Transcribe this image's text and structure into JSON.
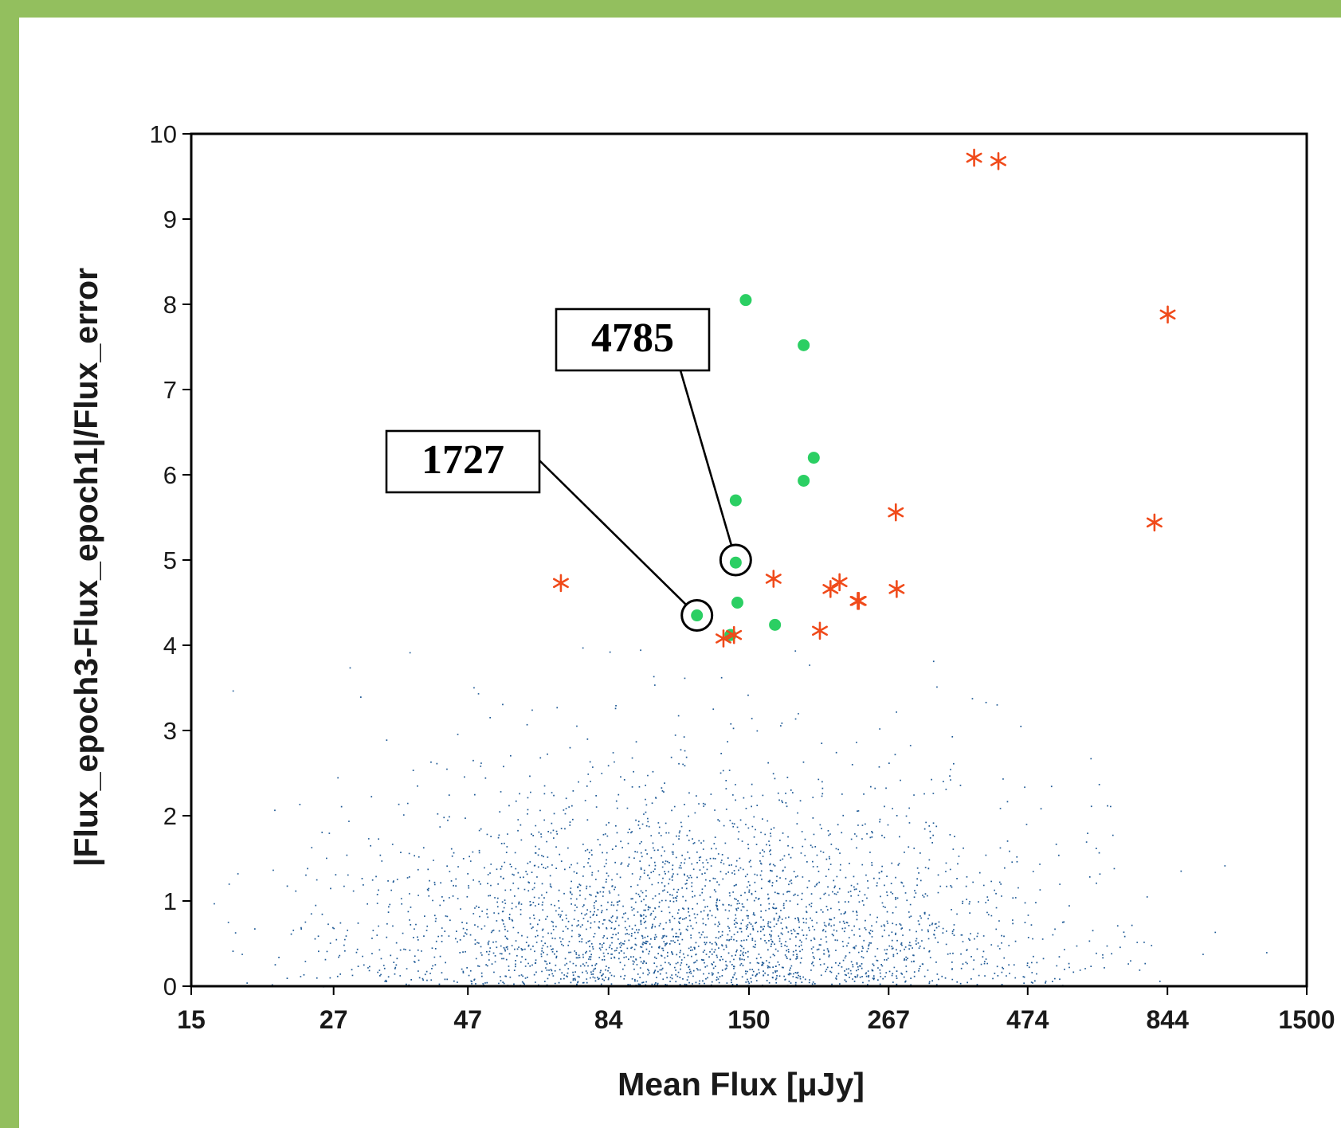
{
  "chart_data": {
    "type": "scatter",
    "title": "",
    "xlabel": "Mean Flux [μJy]",
    "ylabel": "|Flux_epoch3-Flux_epoch1|/Flux_error",
    "x_scale": "log",
    "xlim": [
      15,
      1500
    ],
    "ylim": [
      0,
      10
    ],
    "x_ticks": [
      "15",
      "27",
      "47",
      "84",
      "150",
      "267",
      "474",
      "844",
      "1500"
    ],
    "y_ticks": [
      "0",
      "1",
      "2",
      "3",
      "4",
      "5",
      "6",
      "7",
      "8",
      "9",
      "10"
    ],
    "grid": false,
    "legend": "none",
    "colors": {
      "frame": "#93bf5e",
      "population": "#1f5a96",
      "highlight_points": "#2bcf63",
      "asterisks": "#f04a1a"
    },
    "series": [
      {
        "marker": "dot",
        "color": "#1f5a96",
        "points": "dense cloud of thousands of sources, x 15–1500 μJy (densest 60–200), y 0–4.1 (densest below 1.5)"
      },
      {
        "marker": "filled-circle",
        "color": "#2bcf63",
        "x": [
          148,
          188,
          196,
          188,
          142,
          142,
          143,
          121,
          139,
          167,
          139
        ],
        "y": [
          8.05,
          7.52,
          6.2,
          5.93,
          5.7,
          4.97,
          4.5,
          4.35,
          4.12,
          4.24,
          4.12
        ]
      },
      {
        "marker": "asterisk",
        "color": "#f04a1a",
        "x": [
          380,
          420,
          845,
          275,
          800,
          235,
          236,
          276,
          69,
          166,
          210,
          218,
          201,
          141,
          135
        ],
        "y": [
          9.72,
          9.68,
          7.88,
          5.56,
          5.44,
          4.52,
          4.52,
          4.66,
          4.73,
          4.78,
          4.66,
          4.74,
          4.17,
          4.12,
          4.08
        ]
      }
    ],
    "annotations": [
      {
        "label": "4785",
        "x": 142,
        "y": 5.0
      },
      {
        "label": "1727",
        "x": 121,
        "y": 4.35
      }
    ]
  }
}
